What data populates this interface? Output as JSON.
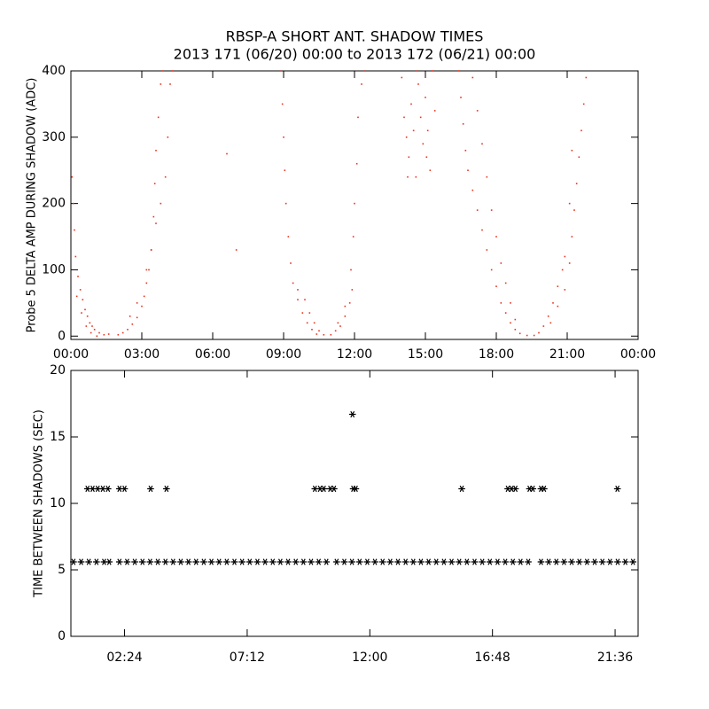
{
  "chart_data": [
    {
      "type": "scatter",
      "title": "RBSP-A SHORT ANT. SHADOW TIMES",
      "subtitle": "2013 171 (06/20) 00:00 to 2013 172 (06/21) 00:00",
      "y_label": "Probe 5 DELTA AMP DURING SHADOW (ADC)",
      "color": "#e8321e",
      "marker": "dot",
      "xlim": [
        0,
        24
      ],
      "ylim": [
        -5,
        400
      ],
      "xticks": [
        {
          "value": 0,
          "label": "00:00"
        },
        {
          "value": 3,
          "label": "03:00"
        },
        {
          "value": 6,
          "label": "06:00"
        },
        {
          "value": 9,
          "label": "09:00"
        },
        {
          "value": 12,
          "label": "12:00"
        },
        {
          "value": 15,
          "label": "15:00"
        },
        {
          "value": 18,
          "label": "18:00"
        },
        {
          "value": 21,
          "label": "21:00"
        },
        {
          "value": 24,
          "label": "00:00"
        }
      ],
      "yticks": [
        0,
        100,
        200,
        300,
        400
      ],
      "x": [
        0.05,
        0.1,
        0.15,
        0.2,
        0.3,
        0.4,
        0.5,
        0.6,
        0.7,
        0.8,
        0.9,
        1.0,
        1.2,
        1.4,
        0.25,
        0.45,
        0.65,
        0.85,
        1.1,
        1.6,
        2.0,
        2.2,
        2.4,
        2.6,
        2.8,
        3.0,
        3.1,
        3.2,
        3.3,
        3.4,
        3.5,
        3.55,
        3.6,
        3.7,
        3.8,
        3.9,
        2.5,
        2.8,
        3.2,
        3.4,
        3.6,
        3.8,
        4.0,
        4.1,
        4.2,
        4.3,
        6.6,
        7.0,
        8.9,
        8.95,
        9.0,
        9.05,
        9.1,
        9.2,
        9.3,
        9.4,
        9.6,
        9.8,
        10.0,
        10.2,
        10.4,
        9.6,
        9.9,
        10.1,
        10.3,
        10.5,
        10.7,
        11.0,
        11.2,
        11.4,
        11.6,
        11.8,
        11.9,
        11.3,
        11.6,
        11.85,
        11.95,
        12.0,
        12.1,
        12.15,
        12.3,
        12.4,
        14.0,
        14.1,
        14.2,
        14.3,
        14.4,
        14.5,
        14.6,
        14.7,
        14.8,
        14.9,
        15.0,
        15.1,
        15.2,
        15.3,
        15.4,
        14.25,
        14.65,
        15.05,
        16.4,
        16.5,
        16.6,
        16.7,
        16.8,
        17.0,
        17.2,
        17.4,
        17.6,
        17.8,
        18.0,
        18.2,
        18.4,
        18.6,
        18.8,
        19.0,
        19.3,
        17.0,
        17.2,
        17.4,
        17.6,
        17.8,
        18.0,
        18.2,
        18.4,
        18.6,
        18.8,
        19.6,
        19.8,
        20.0,
        20.2,
        20.4,
        20.6,
        20.8,
        20.9,
        20.3,
        20.6,
        20.9,
        21.1,
        21.2,
        21.3,
        21.4,
        21.5,
        21.6,
        21.7,
        21.8,
        21.1,
        21.2
      ],
      "values": [
        240,
        200,
        160,
        120,
        90,
        70,
        55,
        40,
        30,
        20,
        15,
        10,
        5,
        2,
        60,
        35,
        15,
        5,
        0,
        3,
        2,
        5,
        10,
        18,
        28,
        45,
        60,
        80,
        100,
        130,
        180,
        230,
        280,
        330,
        380,
        400,
        30,
        50,
        100,
        130,
        170,
        200,
        240,
        300,
        380,
        400,
        275,
        130,
        400,
        350,
        300,
        250,
        200,
        150,
        110,
        80,
        55,
        35,
        20,
        10,
        3,
        70,
        55,
        35,
        20,
        8,
        2,
        2,
        8,
        15,
        30,
        50,
        70,
        20,
        45,
        100,
        150,
        200,
        260,
        330,
        380,
        400,
        390,
        330,
        300,
        270,
        350,
        310,
        240,
        380,
        330,
        290,
        360,
        310,
        250,
        400,
        340,
        240,
        400,
        270,
        400,
        360,
        320,
        280,
        250,
        220,
        190,
        160,
        130,
        100,
        75,
        50,
        35,
        20,
        10,
        4,
        1,
        390,
        340,
        290,
        240,
        190,
        150,
        110,
        80,
        50,
        25,
        1,
        5,
        15,
        30,
        50,
        75,
        100,
        120,
        20,
        45,
        70,
        110,
        150,
        190,
        230,
        270,
        310,
        350,
        390,
        200,
        280
      ]
    },
    {
      "type": "scatter",
      "y_label": "TIME BETWEEN SHADOWS (SEC)",
      "color": "#000000",
      "marker": "asterisk",
      "xlim": [
        0.3,
        22.5
      ],
      "ylim": [
        0,
        20
      ],
      "xticks": [
        {
          "value": 2.4,
          "label": "02:24"
        },
        {
          "value": 7.2,
          "label": "07:12"
        },
        {
          "value": 12,
          "label": "12:00"
        },
        {
          "value": 16.8,
          "label": "16:48"
        },
        {
          "value": 21.6,
          "label": "21:36"
        }
      ],
      "yticks": [
        0,
        5,
        10,
        15,
        20
      ],
      "x": [
        0.4,
        0.7,
        1.0,
        1.3,
        1.6,
        1.8,
        2.2,
        2.5,
        2.8,
        3.1,
        3.4,
        3.7,
        4.0,
        4.3,
        4.6,
        4.9,
        5.2,
        5.5,
        5.8,
        6.1,
        6.4,
        6.7,
        7.0,
        7.3,
        7.6,
        7.9,
        8.2,
        8.5,
        8.8,
        9.1,
        9.4,
        9.7,
        10.0,
        10.3,
        10.7,
        11.0,
        11.3,
        11.6,
        11.9,
        12.2,
        12.5,
        12.8,
        13.1,
        13.4,
        13.7,
        14.0,
        14.3,
        14.6,
        14.9,
        15.2,
        15.5,
        15.8,
        16.1,
        16.4,
        16.7,
        17.0,
        17.3,
        17.6,
        17.9,
        18.2,
        18.7,
        19.0,
        19.3,
        19.6,
        19.9,
        20.2,
        20.5,
        20.8,
        21.1,
        21.4,
        21.7,
        22.0,
        22.3,
        0.95,
        1.15,
        1.35,
        1.55,
        1.75,
        2.2,
        2.4,
        3.42,
        4.04,
        9.85,
        10.05,
        10.2,
        10.45,
        10.6,
        11.35,
        11.45,
        15.6,
        17.4,
        17.55,
        17.7,
        18.25,
        18.38,
        18.7,
        18.82,
        21.69,
        11.32
      ],
      "values": [
        5.6,
        5.6,
        5.6,
        5.6,
        5.6,
        5.6,
        5.6,
        5.6,
        5.6,
        5.6,
        5.6,
        5.6,
        5.6,
        5.6,
        5.6,
        5.6,
        5.6,
        5.6,
        5.6,
        5.6,
        5.6,
        5.6,
        5.6,
        5.6,
        5.6,
        5.6,
        5.6,
        5.6,
        5.6,
        5.6,
        5.6,
        5.6,
        5.6,
        5.6,
        5.6,
        5.6,
        5.6,
        5.6,
        5.6,
        5.6,
        5.6,
        5.6,
        5.6,
        5.6,
        5.6,
        5.6,
        5.6,
        5.6,
        5.6,
        5.6,
        5.6,
        5.6,
        5.6,
        5.6,
        5.6,
        5.6,
        5.6,
        5.6,
        5.6,
        5.6,
        5.6,
        5.6,
        5.6,
        5.6,
        5.6,
        5.6,
        5.6,
        5.6,
        5.6,
        5.6,
        5.6,
        5.6,
        5.6,
        11.1,
        11.1,
        11.1,
        11.1,
        11.1,
        11.1,
        11.1,
        11.1,
        11.1,
        11.1,
        11.1,
        11.1,
        11.1,
        11.1,
        11.1,
        11.1,
        11.1,
        11.1,
        11.1,
        11.1,
        11.1,
        11.1,
        11.1,
        11.1,
        11.1,
        16.7
      ]
    }
  ]
}
